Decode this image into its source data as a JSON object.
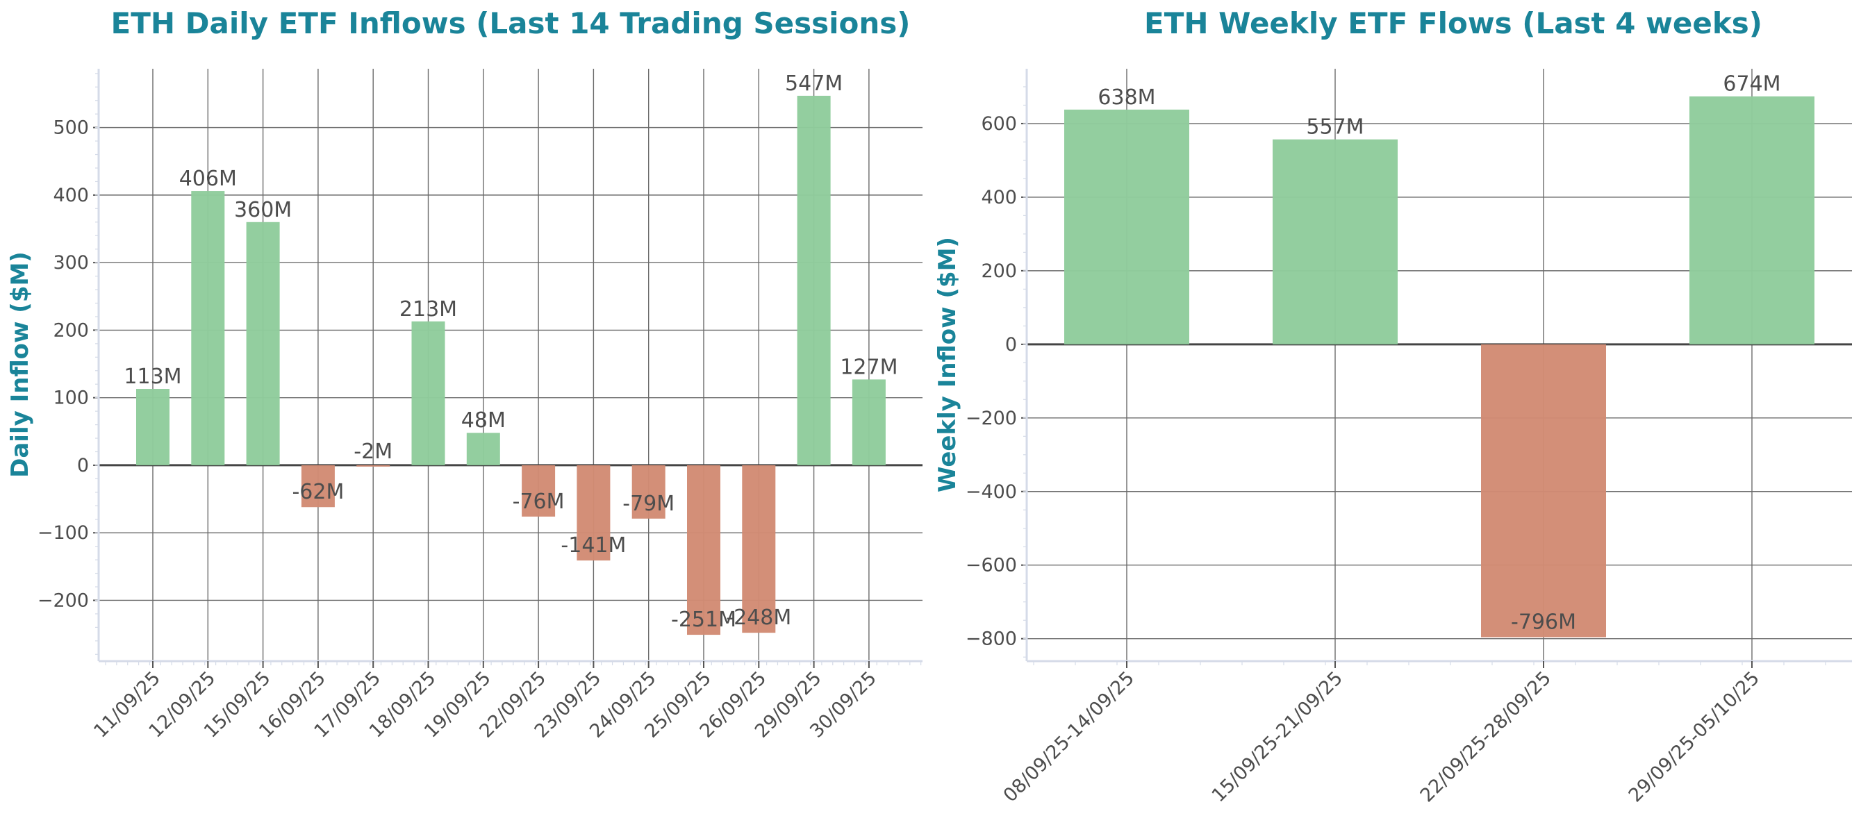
{
  "colors": {
    "title": "#1a8499",
    "positive": "#8fcc9c",
    "negative": "#d28b74",
    "text": "#4d4d4d"
  },
  "chart_data": [
    {
      "type": "bar",
      "title": "ETH Daily ETF Inflows (Last 14 Trading Sessions)",
      "xlabel": "",
      "ylabel": "Daily Inflow ($M)",
      "categories": [
        "11/09/25",
        "12/09/25",
        "15/09/25",
        "16/09/25",
        "17/09/25",
        "18/09/25",
        "19/09/25",
        "22/09/25",
        "23/09/25",
        "24/09/25",
        "25/09/25",
        "26/09/25",
        "29/09/25",
        "30/09/25"
      ],
      "values": [
        113,
        406,
        360,
        -62,
        -2,
        213,
        48,
        -76,
        -141,
        -79,
        -251,
        -248,
        547,
        127
      ],
      "data_labels": [
        "113M",
        "406M",
        "360M",
        "-62M",
        "-2M",
        "213M",
        "48M",
        "-76M",
        "-141M",
        "-79M",
        "-251M",
        "-248M",
        "547M",
        "127M"
      ],
      "yticks": [
        -200,
        -100,
        0,
        100,
        200,
        300,
        400,
        500
      ],
      "ytick_labels": [
        "−200",
        "−100",
        "0",
        "100",
        "200",
        "300",
        "400",
        "500"
      ],
      "ylim": [
        -290,
        587
      ],
      "grid": true,
      "legend": "none"
    },
    {
      "type": "bar",
      "title": "ETH Weekly ETF Flows (Last 4 weeks)",
      "xlabel": "",
      "ylabel": "Weekly Inflow ($M)",
      "categories": [
        "08/09/25-14/09/25",
        "15/09/25-21/09/25",
        "22/09/25-28/09/25",
        "29/09/25-05/10/25"
      ],
      "values": [
        638,
        557,
        -796,
        674
      ],
      "data_labels": [
        "638M",
        "557M",
        "-796M",
        "674M"
      ],
      "yticks": [
        -800,
        -600,
        -400,
        -200,
        0,
        200,
        400,
        600
      ],
      "ytick_labels": [
        "−800",
        "−600",
        "−400",
        "−200",
        "0",
        "200",
        "400",
        "600"
      ],
      "ylim": [
        -861,
        749
      ],
      "grid": true,
      "legend": "none"
    }
  ]
}
